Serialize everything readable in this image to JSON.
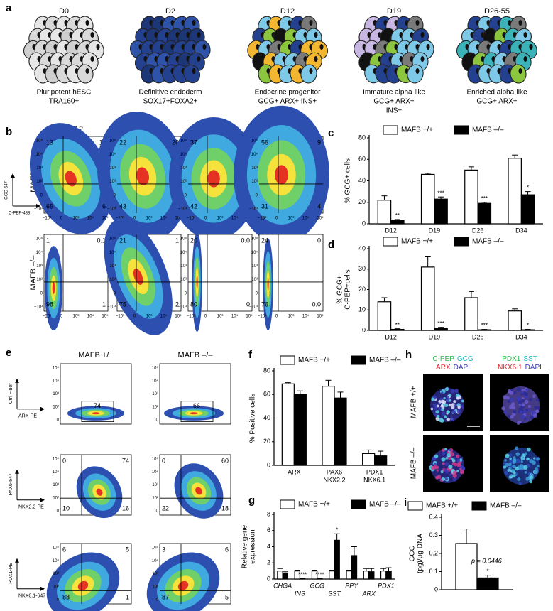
{
  "figure": {
    "a": {
      "label": "a",
      "stages": [
        {
          "day": "D0",
          "caption": [
            "Pluripotent hESC",
            "TRA160+"
          ]
        },
        {
          "day": "D2",
          "caption": [
            "Definitive endoderm",
            "SOX17+FOXA2+"
          ]
        },
        {
          "day": "D12",
          "caption": [
            "Endocrine progenitor",
            "GCG+ ARX+ INS+"
          ]
        },
        {
          "day": "D19",
          "caption": [
            "Immature alpha-like",
            "GCG+ ARX+",
            "INS+"
          ]
        },
        {
          "day": "D26-55",
          "caption": [
            "Enriched alpha-like",
            "GCG+ ARX+"
          ]
        }
      ]
    },
    "b": {
      "label": "b",
      "columns": [
        "D12",
        "D19",
        "D26",
        "D34"
      ],
      "ylabel": "GCG-647",
      "xlabel": "C-PEP-488",
      "xticks": [
        "−10³",
        "0",
        "10³",
        "10⁴",
        "10⁵"
      ],
      "yticks": [
        "10⁵",
        "10⁴",
        "10³",
        "10²",
        "0",
        "−10³"
      ],
      "rows": [
        {
          "name": "MAFB +/+",
          "quadrants": [
            [
              "13",
              "11",
              "69",
              "6"
            ],
            [
              "22",
              "26",
              "43",
              "8"
            ],
            [
              "37",
              "16",
              "42",
              "5"
            ],
            [
              "56",
              "9",
              "31",
              "4"
            ]
          ]
        },
        {
          "name": "MAFB –/–",
          "quadrants": [
            [
              "1",
              "0.1",
              "98",
              "1"
            ],
            [
              "21",
              "1",
              "75",
              "2"
            ],
            [
              "20",
              "0.0",
              "80",
              "0"
            ],
            [
              "24",
              "0",
              "76",
              "0.0"
            ]
          ]
        }
      ]
    },
    "e": {
      "label": "e",
      "columns": [
        "MAFB +/+",
        "MAFB –/–"
      ],
      "yticks": [
        "10⁵",
        "10⁴",
        "10³",
        "10²",
        "0"
      ],
      "rows": [
        {
          "ylabel": "Ctrl Fluor",
          "xlabel": "ARX-PE",
          "gates": [
            "74",
            "66"
          ]
        },
        {
          "ylabel": "PAX6-647",
          "xlabel": "NKX2.2-PE",
          "quadrants": [
            [
              "0",
              "74",
              "10",
              "16"
            ],
            [
              "0",
              "60",
              "22",
              "18"
            ]
          ]
        },
        {
          "ylabel": "PDX1-PE",
          "xlabel": "NKX6.1-647",
          "quadrants": [
            [
              "6",
              "5",
              "88",
              "1"
            ],
            [
              "3",
              "6",
              "87",
              "5"
            ]
          ]
        }
      ]
    },
    "h": {
      "label": "h",
      "rows": [
        "MAFB +/+",
        "MAFB –/–"
      ],
      "stains": [
        [
          [
            {
              "text": "C-PEP",
              "color": "#2db84a"
            },
            {
              "text": "GCG",
              "color": "#1fb8c8"
            }
          ],
          [
            {
              "text": "ARX",
              "color": "#e0262b"
            },
            {
              "text": "DAPI",
              "color": "#3a3ab8"
            }
          ]
        ],
        [
          [
            {
              "text": "PDX1",
              "color": "#2db84a"
            },
            {
              "text": "SST",
              "color": "#1fb8c8"
            }
          ],
          [
            {
              "text": "NKX6.1",
              "color": "#e0262b"
            },
            {
              "text": "DAPI",
              "color": "#3a3ab8"
            }
          ]
        ]
      ]
    }
  },
  "chart_data": [
    {
      "type": "bar",
      "panel": "c",
      "ylabel": [
        "% GCG+ cells"
      ],
      "categories": [
        "D12",
        "D19",
        "D26",
        "D34"
      ],
      "ylim": [
        0,
        80
      ],
      "yticks": [
        0,
        20,
        40,
        60,
        80
      ],
      "series": [
        {
          "name": "MAFB +/+",
          "color": "#ffffff",
          "values": [
            22,
            46,
            50,
            61
          ],
          "errors": [
            4,
            1,
            3,
            3
          ]
        },
        {
          "name": "MAFB –/–",
          "color": "#000000",
          "values": [
            3,
            23,
            19,
            27
          ],
          "errors": [
            1,
            2,
            1,
            3
          ],
          "significance": [
            "**",
            "***",
            "***",
            "*"
          ]
        }
      ]
    },
    {
      "type": "bar",
      "panel": "d",
      "ylabel": [
        "% GCG+",
        "C-PEP+cells"
      ],
      "categories": [
        "D12",
        "D19",
        "D26",
        "D34"
      ],
      "ylim": [
        0,
        40
      ],
      "yticks": [
        0,
        10,
        20,
        30,
        40
      ],
      "series": [
        {
          "name": "MAFB +/+",
          "color": "#ffffff",
          "values": [
            14,
            31,
            16,
            9.5
          ],
          "errors": [
            2,
            5,
            3,
            1
          ]
        },
        {
          "name": "MAFB –/–",
          "color": "#000000",
          "values": [
            0.5,
            1,
            0.3,
            0.3
          ],
          "errors": [
            0.3,
            0.5,
            0.2,
            0.2
          ],
          "significance": [
            "**",
            "***",
            "***",
            "*"
          ]
        }
      ]
    },
    {
      "type": "bar",
      "panel": "f",
      "ylabel": [
        "% Positive cells"
      ],
      "categories": [
        [
          "ARX"
        ],
        [
          "PAX6",
          "NKX2.2"
        ],
        [
          "PDX1",
          "NKX6.1"
        ]
      ],
      "ylim": [
        0,
        80
      ],
      "yticks": [
        0,
        20,
        40,
        60,
        80
      ],
      "series": [
        {
          "name": "MAFB +/+",
          "color": "#ffffff",
          "values": [
            69,
            67,
            10
          ],
          "errors": [
            1,
            5,
            3
          ]
        },
        {
          "name": "MAFB –/–",
          "color": "#000000",
          "values": [
            60,
            57,
            8
          ],
          "errors": [
            3,
            5,
            4
          ]
        }
      ]
    },
    {
      "type": "bar",
      "panel": "g",
      "ylabel": [
        "Relative gene",
        "expression"
      ],
      "categories": [
        "CHGA",
        "INS",
        "GCG",
        "SST",
        "PPY",
        "ARX",
        "PDX1"
      ],
      "category_style": "italic",
      "ylim": [
        0,
        8
      ],
      "yticks": [
        0,
        2,
        4,
        6,
        8
      ],
      "series": [
        {
          "name": "MAFB +/+",
          "color": "#ffffff",
          "values": [
            1,
            1,
            1,
            1,
            1,
            1,
            1
          ],
          "errors": [
            0.3,
            0.1,
            0.1,
            0.1,
            0.1,
            0.3,
            0.3
          ]
        },
        {
          "name": "MAFB –/–",
          "color": "#000000",
          "values": [
            0.7,
            0.05,
            0.05,
            4.8,
            2.9,
            0.9,
            1.0
          ],
          "errors": [
            0.2,
            0.02,
            0.02,
            0.8,
            1.1,
            0.4,
            0.4
          ],
          "significance": [
            null,
            "****",
            "****",
            "*",
            null,
            null,
            null
          ]
        }
      ]
    },
    {
      "type": "bar",
      "panel": "i",
      "ylabel": [
        "GCG",
        "(pg)/μg DNA"
      ],
      "categories": [
        null
      ],
      "ylim": [
        0,
        0.4
      ],
      "yticks": [
        0,
        0.1,
        0.2,
        0.3,
        0.4
      ],
      "annotation": "p = 0.0446",
      "series": [
        {
          "name": "MAFB +/+",
          "color": "#ffffff",
          "values": [
            0.255
          ],
          "errors": [
            0.08
          ]
        },
        {
          "name": "MAFB –/–",
          "color": "#000000",
          "values": [
            0.065
          ],
          "errors": [
            0.015
          ],
          "significance": [
            "*"
          ]
        }
      ]
    }
  ]
}
